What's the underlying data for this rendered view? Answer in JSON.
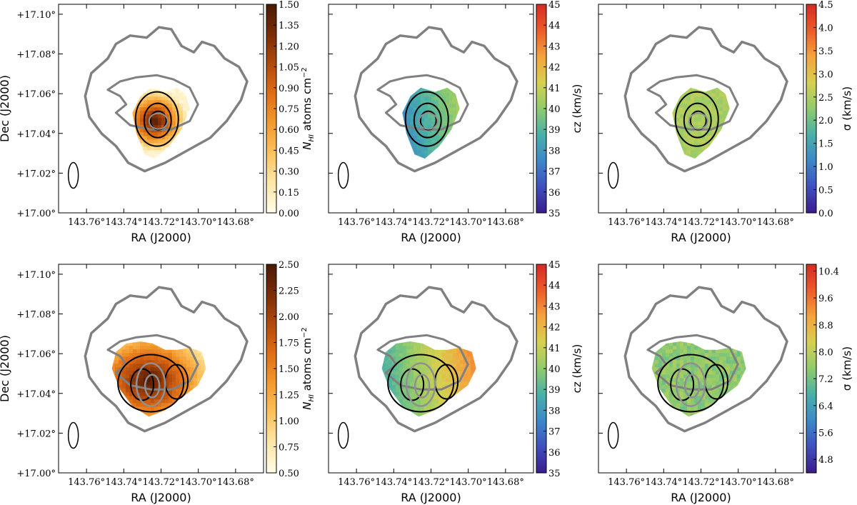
{
  "figure": {
    "description_type": "six-panel HI moment maps with contours"
  },
  "colors": {
    "outer_contour": "#808080",
    "inner_contour": "#000000",
    "beam": "#000000",
    "cmap_density": [
      "#fffbe6",
      "#fde7a8",
      "#fbc25e",
      "#f39a2e",
      "#df6e16",
      "#b24a0c",
      "#7a2d07",
      "#4a1a04"
    ],
    "cmap_rainbow": [
      "#3b1c8c",
      "#3f4fbf",
      "#3d88c7",
      "#49b0a8",
      "#8fcb6c",
      "#d6d050",
      "#f4a33d",
      "#ec5b2a",
      "#d42a24"
    ],
    "cmap_sigma": [
      "#3b1c8c",
      "#3f4fbf",
      "#3d88c7",
      "#49b0a8",
      "#8fcb6c",
      "#d6d050",
      "#f4a33d",
      "#ec5b2a",
      "#d42a24"
    ]
  },
  "chart_data": [
    {
      "type": "heatmap",
      "id": "top-density",
      "xlabel": "RA (J2000)",
      "ylabel": "Dec (J2000)",
      "xticks": [
        "143.76°",
        "143.74°",
        "143.72°",
        "143.70°",
        "143.68°"
      ],
      "yticks": [
        "+17.00°",
        "+17.02°",
        "+17.04°",
        "+17.06°",
        "+17.08°",
        "+17.10°"
      ],
      "xlim": [
        143.775,
        143.665
      ],
      "ylim": [
        17.0,
        17.105
      ],
      "colorbar": {
        "label": "N_HI atoms cm^-2",
        "label_main": "N",
        "label_sub": "HI",
        "label_rest": " atoms cm",
        "label_sup": "−2",
        "cmap": "density",
        "vmin": 0.0,
        "vmax": 1.5,
        "ticks": [
          "0.00",
          "0.15",
          "0.30",
          "0.45",
          "0.60",
          "0.75",
          "0.90",
          "1.05",
          "1.20",
          "1.35",
          "1.50"
        ]
      },
      "show_ylabel": true,
      "field": "peak"
    },
    {
      "type": "heatmap",
      "id": "top-velocity",
      "xlabel": "RA (J2000)",
      "ylabel": "",
      "xticks": [
        "143.76°",
        "143.74°",
        "143.72°",
        "143.70°",
        "143.68°"
      ],
      "yticks": [],
      "xlim": [
        143.775,
        143.665
      ],
      "ylim": [
        17.0,
        17.105
      ],
      "colorbar": {
        "label": "cz (km/s)",
        "cmap": "rainbow",
        "vmin": 35,
        "vmax": 45,
        "ticks": [
          "35",
          "36",
          "37",
          "38",
          "39",
          "40",
          "41",
          "42",
          "43",
          "44",
          "45"
        ]
      },
      "show_ylabel": false,
      "field": "gradient"
    },
    {
      "type": "heatmap",
      "id": "top-dispersion",
      "xlabel": "RA (J2000)",
      "ylabel": "",
      "xticks": [
        "143.76°",
        "143.74°",
        "143.72°",
        "143.70°",
        "143.68°"
      ],
      "yticks": [],
      "xlim": [
        143.775,
        143.665
      ],
      "ylim": [
        17.0,
        17.105
      ],
      "colorbar": {
        "label": "σ (km/s)",
        "cmap": "sigma",
        "vmin": 0.0,
        "vmax": 4.5,
        "ticks": [
          "0.0",
          "0.5",
          "1.0",
          "1.5",
          "2.0",
          "2.5",
          "3.0",
          "3.5",
          "4.0",
          "4.5"
        ]
      },
      "show_ylabel": false,
      "field": "flat"
    },
    {
      "type": "heatmap",
      "id": "bottom-density",
      "xlabel": "RA (J2000)",
      "ylabel": "Dec (J2000)",
      "xticks": [
        "143.76°",
        "143.74°",
        "143.72°",
        "143.70°",
        "143.68°"
      ],
      "yticks": [
        "+17.00°",
        "+17.02°",
        "+17.04°",
        "+17.06°",
        "+17.08°",
        "+17.10°"
      ],
      "xlim": [
        143.775,
        143.665
      ],
      "ylim": [
        17.0,
        17.105
      ],
      "colorbar": {
        "label": "N_HI atoms cm^-2",
        "label_main": "N",
        "label_sub": "HI",
        "label_rest": " atoms cm",
        "label_sup": "−2",
        "cmap": "density",
        "vmin": 0.5,
        "vmax": 2.5,
        "ticks": [
          "0.50",
          "0.75",
          "1.00",
          "1.25",
          "1.50",
          "1.75",
          "2.00",
          "2.25",
          "2.50"
        ]
      },
      "show_ylabel": true,
      "field": "peak-wide"
    },
    {
      "type": "heatmap",
      "id": "bottom-velocity",
      "xlabel": "RA (J2000)",
      "ylabel": "",
      "xticks": [
        "143.76°",
        "143.74°",
        "143.72°",
        "143.70°",
        "143.68°"
      ],
      "yticks": [],
      "xlim": [
        143.775,
        143.665
      ],
      "ylim": [
        17.0,
        17.105
      ],
      "colorbar": {
        "label": "cz (km/s)",
        "cmap": "rainbow",
        "vmin": 35,
        "vmax": 45,
        "ticks": [
          "35",
          "36",
          "37",
          "38",
          "39",
          "40",
          "41",
          "42",
          "43",
          "44",
          "45"
        ]
      },
      "show_ylabel": false,
      "field": "gradient-wide"
    },
    {
      "type": "heatmap",
      "id": "bottom-dispersion",
      "xlabel": "RA (J2000)",
      "ylabel": "",
      "xticks": [
        "143.76°",
        "143.74°",
        "143.72°",
        "143.70°",
        "143.68°"
      ],
      "yticks": [],
      "xlim": [
        143.775,
        143.665
      ],
      "ylim": [
        17.0,
        17.105
      ],
      "colorbar": {
        "label": "σ (km/s)",
        "cmap": "sigma",
        "vmin": 4.4,
        "vmax": 10.6,
        "ticks": [
          "4.8",
          "5.6",
          "6.4",
          "7.2",
          "8.0",
          "8.8",
          "9.6",
          "10.4"
        ]
      },
      "show_ylabel": false,
      "field": "flat-wide"
    }
  ]
}
